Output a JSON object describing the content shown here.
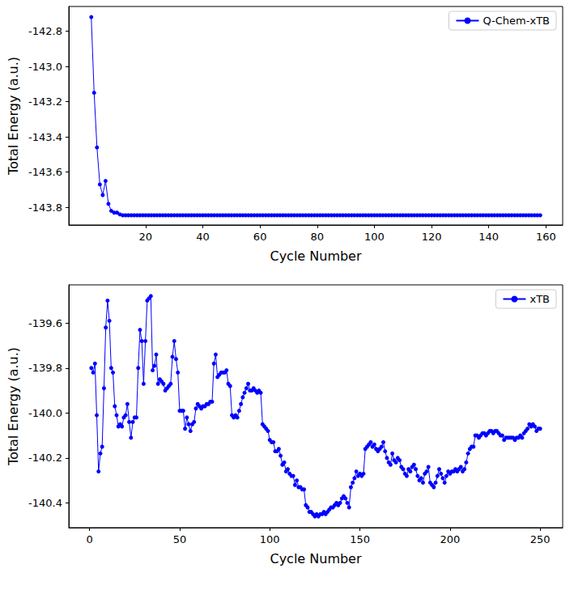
{
  "chart_data": [
    {
      "type": "line",
      "xlabel": "Cycle Number",
      "ylabel": "Total Energy (a.u.)",
      "legend": "upper right",
      "grid": false,
      "xlim": [
        -6.85,
        165.85
      ],
      "ylim": [
        -143.9,
        -142.66
      ],
      "xticks": [
        20,
        40,
        60,
        80,
        100,
        120,
        140,
        160
      ],
      "yticks": [
        -143.8,
        -143.6,
        -143.4,
        -143.2,
        {
          "value": -143,
          "label": "-143.0"
        },
        -142.8
      ],
      "x": [
        1,
        2,
        3,
        4,
        5,
        6,
        7,
        8,
        9,
        10,
        11,
        12,
        13,
        14,
        15,
        16,
        17,
        18,
        19,
        20,
        21,
        22,
        23,
        24,
        25,
        26,
        27,
        28,
        29,
        30,
        31,
        32,
        33,
        34,
        35,
        36,
        37,
        38,
        39,
        40,
        41,
        42,
        43,
        44,
        45,
        46,
        47,
        48,
        49,
        50,
        51,
        52,
        53,
        54,
        55,
        56,
        57,
        58,
        59,
        60,
        61,
        62,
        63,
        64,
        65,
        66,
        67,
        68,
        69,
        70,
        71,
        72,
        73,
        74,
        75,
        76,
        77,
        78,
        79,
        80,
        81,
        82,
        83,
        84,
        85,
        86,
        87,
        88,
        89,
        90,
        91,
        92,
        93,
        94,
        95,
        96,
        97,
        98,
        99,
        100,
        101,
        102,
        103,
        104,
        105,
        106,
        107,
        108,
        109,
        110,
        111,
        112,
        113,
        114,
        115,
        116,
        117,
        118,
        119,
        120,
        121,
        122,
        123,
        124,
        125,
        126,
        127,
        128,
        129,
        130,
        131,
        132,
        133,
        134,
        135,
        136,
        137,
        138,
        139,
        140,
        141,
        142,
        143,
        144,
        145,
        146,
        147,
        148,
        149,
        150,
        151,
        152,
        153,
        154,
        155,
        156,
        157,
        158
      ],
      "series": [
        {
          "name": "Q-Chem-xTB",
          "color": "#0000ff",
          "marker": "circle",
          "line_style": "solid",
          "values": [
            -142.72,
            -143.15,
            -143.46,
            -143.67,
            -143.73,
            -143.65,
            -143.78,
            -143.82,
            -143.83,
            -143.83,
            -143.84,
            -143.845,
            -143.845,
            -143.845,
            -143.845,
            -143.845,
            -143.845,
            -143.845,
            -143.845,
            -143.845,
            -143.845,
            -143.845,
            -143.845,
            -143.845,
            -143.845,
            -143.845,
            -143.845,
            -143.845,
            -143.845,
            -143.845,
            -143.845,
            -143.845,
            -143.845,
            -143.845,
            -143.845,
            -143.845,
            -143.845,
            -143.845,
            -143.845,
            -143.845,
            -143.845,
            -143.845,
            -143.845,
            -143.845,
            -143.845,
            -143.845,
            -143.845,
            -143.845,
            -143.845,
            -143.845,
            -143.845,
            -143.845,
            -143.845,
            -143.845,
            -143.845,
            -143.845,
            -143.845,
            -143.845,
            -143.845,
            -143.845,
            -143.845,
            -143.845,
            -143.845,
            -143.845,
            -143.845,
            -143.845,
            -143.845,
            -143.845,
            -143.845,
            -143.845,
            -143.845,
            -143.845,
            -143.845,
            -143.845,
            -143.845,
            -143.845,
            -143.845,
            -143.845,
            -143.845,
            -143.845,
            -143.845,
            -143.845,
            -143.845,
            -143.845,
            -143.845,
            -143.845,
            -143.845,
            -143.845,
            -143.845,
            -143.845,
            -143.845,
            -143.845,
            -143.845,
            -143.845,
            -143.845,
            -143.845,
            -143.845,
            -143.845,
            -143.845,
            -143.845,
            -143.845,
            -143.845,
            -143.845,
            -143.845,
            -143.845,
            -143.845,
            -143.845,
            -143.845,
            -143.845,
            -143.845,
            -143.845,
            -143.845,
            -143.845,
            -143.845,
            -143.845,
            -143.845,
            -143.845,
            -143.845,
            -143.845,
            -143.845,
            -143.845,
            -143.845,
            -143.845,
            -143.845,
            -143.845,
            -143.845,
            -143.845,
            -143.845,
            -143.845,
            -143.845,
            -143.845,
            -143.845,
            -143.845,
            -143.845,
            -143.845,
            -143.845,
            -143.845,
            -143.845,
            -143.845,
            -143.845,
            -143.845,
            -143.845,
            -143.845,
            -143.845,
            -143.845,
            -143.845,
            -143.845,
            -143.845,
            -143.845,
            -143.845,
            -143.845,
            -143.845,
            -143.845,
            -143.845,
            -143.845,
            -143.845,
            -143.845,
            -143.845
          ]
        }
      ]
    },
    {
      "type": "line",
      "xlabel": "Cycle Number",
      "ylabel": "Total Energy (a.u.)",
      "legend": "upper right",
      "grid": false,
      "xlim": [
        -11.5,
        262.5
      ],
      "ylim": [
        -140.51,
        -139.43
      ],
      "xticks": [
        0,
        50,
        100,
        150,
        200,
        250
      ],
      "yticks": [
        -140.4,
        -140.2,
        {
          "value": -140,
          "label": "-140.0"
        },
        -139.8,
        -139.6
      ],
      "x": [
        1,
        2,
        3,
        4,
        5,
        6,
        7,
        8,
        9,
        10,
        11,
        12,
        13,
        14,
        15,
        16,
        17,
        18,
        19,
        20,
        21,
        22,
        23,
        24,
        25,
        26,
        27,
        28,
        29,
        30,
        31,
        32,
        33,
        34,
        35,
        36,
        37,
        38,
        39,
        40,
        41,
        42,
        43,
        44,
        45,
        46,
        47,
        48,
        49,
        50,
        51,
        52,
        53,
        54,
        55,
        56,
        57,
        58,
        59,
        60,
        61,
        62,
        63,
        64,
        65,
        66,
        67,
        68,
        69,
        70,
        71,
        72,
        73,
        74,
        75,
        76,
        77,
        78,
        79,
        80,
        81,
        82,
        83,
        84,
        85,
        86,
        87,
        88,
        89,
        90,
        91,
        92,
        93,
        94,
        95,
        96,
        97,
        98,
        99,
        100,
        101,
        102,
        103,
        104,
        105,
        106,
        107,
        108,
        109,
        110,
        111,
        112,
        113,
        114,
        115,
        116,
        117,
        118,
        119,
        120,
        121,
        122,
        123,
        124,
        125,
        126,
        127,
        128,
        129,
        130,
        131,
        132,
        133,
        134,
        135,
        136,
        137,
        138,
        139,
        140,
        141,
        142,
        143,
        144,
        145,
        146,
        147,
        148,
        149,
        150,
        151,
        152,
        153,
        154,
        155,
        156,
        157,
        158,
        159,
        160,
        161,
        162,
        163,
        164,
        165,
        166,
        167,
        168,
        169,
        170,
        171,
        172,
        173,
        174,
        175,
        176,
        177,
        178,
        179,
        180,
        181,
        182,
        183,
        184,
        185,
        186,
        187,
        188,
        189,
        190,
        191,
        192,
        193,
        194,
        195,
        196,
        197,
        198,
        199,
        200,
        201,
        202,
        203,
        204,
        205,
        206,
        207,
        208,
        209,
        210,
        211,
        212,
        213,
        214,
        215,
        216,
        217,
        218,
        219,
        220,
        221,
        222,
        223,
        224,
        225,
        226,
        227,
        228,
        229,
        230,
        231,
        232,
        233,
        234,
        235,
        236,
        237,
        238,
        239,
        240,
        241,
        242,
        243,
        244,
        245,
        246,
        247,
        248,
        249,
        250
      ],
      "series": [
        {
          "name": "xTB",
          "color": "#0000ff",
          "marker": "circle",
          "line_style": "solid",
          "values": [
            -139.8,
            -139.82,
            -139.78,
            -140.01,
            -140.26,
            -140.18,
            -140.15,
            -139.89,
            -139.62,
            -139.5,
            -139.59,
            -139.8,
            -139.82,
            -139.97,
            -140.01,
            -140.06,
            -140.05,
            -140.06,
            -140.02,
            -140.01,
            -139.96,
            -140.04,
            -140.11,
            -140.04,
            -140.02,
            -140.02,
            -139.8,
            -139.63,
            -139.68,
            -139.87,
            -139.68,
            -139.5,
            -139.49,
            -139.48,
            -139.81,
            -139.79,
            -139.74,
            -139.87,
            -139.85,
            -139.86,
            -139.87,
            -139.9,
            -139.89,
            -139.88,
            -139.87,
            -139.75,
            -139.68,
            -139.76,
            -139.82,
            -139.99,
            -139.99,
            -139.99,
            -140.07,
            -140.02,
            -140.05,
            -140.08,
            -140.05,
            -140.04,
            -139.98,
            -139.96,
            -139.97,
            -139.98,
            -139.97,
            -139.97,
            -139.96,
            -139.96,
            -139.95,
            -139.95,
            -139.78,
            -139.74,
            -139.84,
            -139.83,
            -139.82,
            -139.82,
            -139.82,
            -139.81,
            -139.87,
            -139.88,
            -140.01,
            -140.02,
            -140.01,
            -140.02,
            -139.99,
            -139.96,
            -139.93,
            -139.91,
            -139.89,
            -139.87,
            -139.9,
            -139.9,
            -139.89,
            -139.9,
            -139.91,
            -139.9,
            -139.91,
            -140.05,
            -140.06,
            -140.07,
            -140.08,
            -140.12,
            -140.13,
            -140.13,
            -140.17,
            -140.17,
            -140.16,
            -140.19,
            -140.23,
            -140.22,
            -140.26,
            -140.25,
            -140.27,
            -140.28,
            -140.28,
            -140.32,
            -140.3,
            -140.33,
            -140.33,
            -140.34,
            -140.34,
            -140.41,
            -140.42,
            -140.44,
            -140.44,
            -140.45,
            -140.46,
            -140.45,
            -140.46,
            -140.45,
            -140.45,
            -140.44,
            -140.45,
            -140.44,
            -140.43,
            -140.42,
            -140.42,
            -140.41,
            -140.4,
            -140.41,
            -140.4,
            -140.38,
            -140.37,
            -140.38,
            -140.4,
            -140.42,
            -140.33,
            -140.31,
            -140.29,
            -140.26,
            -140.28,
            -140.27,
            -140.28,
            -140.27,
            -140.16,
            -140.15,
            -140.14,
            -140.13,
            -140.15,
            -140.14,
            -140.16,
            -140.17,
            -140.16,
            -140.15,
            -140.13,
            -140.17,
            -140.2,
            -140.22,
            -140.23,
            -140.18,
            -140.21,
            -140.22,
            -140.2,
            -140.21,
            -140.24,
            -140.25,
            -140.27,
            -140.28,
            -140.25,
            -140.26,
            -140.24,
            -140.23,
            -140.25,
            -140.28,
            -140.3,
            -140.29,
            -140.31,
            -140.27,
            -140.26,
            -140.24,
            -140.31,
            -140.32,
            -140.33,
            -140.31,
            -140.28,
            -140.25,
            -140.27,
            -140.29,
            -140.31,
            -140.28,
            -140.26,
            -140.27,
            -140.26,
            -140.26,
            -140.25,
            -140.26,
            -140.25,
            -140.24,
            -140.26,
            -140.25,
            -140.22,
            -140.18,
            -140.16,
            -140.15,
            -140.15,
            -140.1,
            -140.1,
            -140.11,
            -140.1,
            -140.09,
            -140.09,
            -140.1,
            -140.09,
            -140.08,
            -140.08,
            -140.09,
            -140.08,
            -140.08,
            -140.09,
            -140.1,
            -140.1,
            -140.12,
            -140.11,
            -140.11,
            -140.11,
            -140.11,
            -140.11,
            -140.12,
            -140.11,
            -140.11,
            -140.1,
            -140.11,
            -140.09,
            -140.08,
            -140.07,
            -140.05,
            -140.06,
            -140.05,
            -140.06,
            -140.08,
            -140.07,
            -140.07
          ]
        }
      ]
    }
  ]
}
